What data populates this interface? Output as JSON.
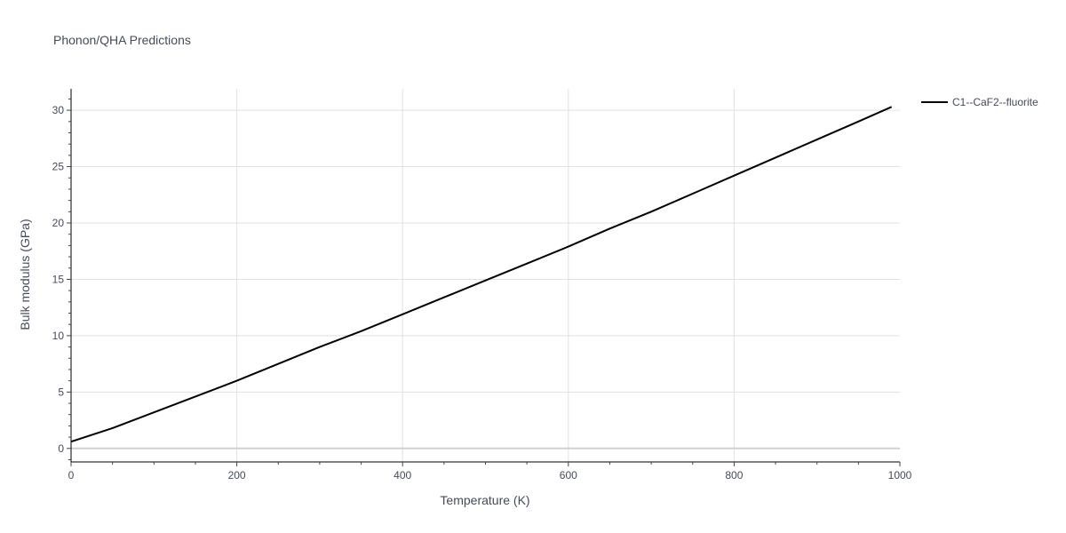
{
  "chart_data": {
    "type": "line",
    "title": "Phonon/QHA Predictions",
    "xlabel": "Temperature (K)",
    "ylabel": "Bulk modulus (GPa)",
    "xlim": [
      0,
      1000
    ],
    "ylim": [
      -1.2,
      31.9
    ],
    "x_ticks": [
      0,
      200,
      400,
      600,
      800,
      1000
    ],
    "y_ticks": [
      0,
      5,
      10,
      15,
      20,
      25,
      30
    ],
    "x_tick_labels": [
      "0",
      "200",
      "400",
      "600",
      "800",
      "1000"
    ],
    "y_tick_labels": [
      "0",
      "5",
      "10",
      "15",
      "20",
      "25",
      "30"
    ],
    "grid": true,
    "legend_position": "top-right",
    "series": [
      {
        "name": "C1--CaF2--fluorite",
        "color": "#000000",
        "x": [
          0,
          50,
          100,
          150,
          200,
          250,
          300,
          350,
          400,
          450,
          500,
          550,
          600,
          650,
          700,
          750,
          800,
          850,
          900,
          950,
          990
        ],
        "y": [
          0.6,
          1.8,
          3.2,
          4.6,
          6.0,
          7.5,
          9.0,
          10.4,
          11.9,
          13.4,
          14.9,
          16.4,
          17.9,
          19.5,
          21.0,
          22.6,
          24.2,
          25.8,
          27.4,
          29.0,
          30.3
        ]
      }
    ]
  }
}
